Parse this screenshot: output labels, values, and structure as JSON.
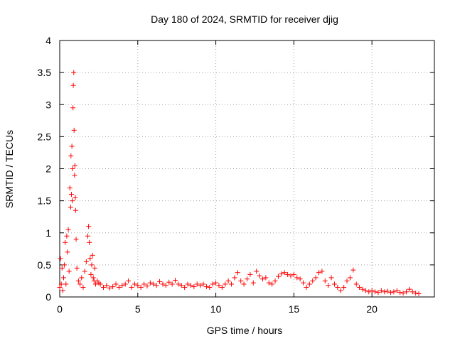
{
  "chart_data": {
    "type": "scatter",
    "title": "Day 180 of 2024, SRMTID for receiver djig",
    "xlabel": "GPS time / hours",
    "ylabel": "SRMTID / TECUs",
    "xlim": [
      0,
      24
    ],
    "ylim": [
      0,
      4
    ],
    "xticks": [
      0,
      5,
      10,
      15,
      20
    ],
    "yticks": [
      0,
      0.5,
      1,
      1.5,
      2,
      2.5,
      3,
      3.5,
      4
    ],
    "ytick_labels": [
      "0",
      "0.5",
      "1",
      "1.5",
      "2",
      "2.5",
      "3",
      "3.5",
      "4"
    ],
    "grid": true,
    "marker": "+",
    "color": "#ff0000",
    "series": [
      {
        "name": "SRMTID",
        "x": [
          0.0,
          0.05,
          0.1,
          0.15,
          0.2,
          0.25,
          0.3,
          0.35,
          0.4,
          0.45,
          0.5,
          0.55,
          0.6,
          0.65,
          0.7,
          0.72,
          0.75,
          0.78,
          0.8,
          0.82,
          0.85,
          0.87,
          0.9,
          0.92,
          0.95,
          0.97,
          1.0,
          1.02,
          1.05,
          1.1,
          1.2,
          1.3,
          1.4,
          1.5,
          1.6,
          1.7,
          1.8,
          1.85,
          1.9,
          1.95,
          2.0,
          2.05,
          2.1,
          2.15,
          2.2,
          2.25,
          2.3,
          2.4,
          2.5,
          2.6,
          2.8,
          3.0,
          3.2,
          3.4,
          3.6,
          3.8,
          4.0,
          4.2,
          4.4,
          4.6,
          4.8,
          5.0,
          5.2,
          5.4,
          5.6,
          5.8,
          6.0,
          6.2,
          6.4,
          6.6,
          6.8,
          7.0,
          7.2,
          7.4,
          7.6,
          7.8,
          8.0,
          8.2,
          8.4,
          8.6,
          8.8,
          9.0,
          9.2,
          9.4,
          9.6,
          9.8,
          10.0,
          10.2,
          10.4,
          10.6,
          10.8,
          11.0,
          11.2,
          11.4,
          11.6,
          11.8,
          12.0,
          12.2,
          12.4,
          12.6,
          12.8,
          13.0,
          13.2,
          13.4,
          13.6,
          13.8,
          14.0,
          14.2,
          14.4,
          14.6,
          14.8,
          15.0,
          15.2,
          15.4,
          15.6,
          15.8,
          16.0,
          16.2,
          16.4,
          16.6,
          16.8,
          17.0,
          17.2,
          17.4,
          17.6,
          17.8,
          18.0,
          18.2,
          18.4,
          18.6,
          18.8,
          19.0,
          19.2,
          19.4,
          19.6,
          19.8,
          20.0,
          20.2,
          20.4,
          20.6,
          20.8,
          21.0,
          21.2,
          21.4,
          21.6,
          21.8,
          22.0,
          22.2,
          22.4,
          22.6,
          22.8,
          23.0
        ],
        "y": [
          0.15,
          0.6,
          0.2,
          0.45,
          0.1,
          0.3,
          0.5,
          0.85,
          0.2,
          0.95,
          0.7,
          1.05,
          0.4,
          1.7,
          1.4,
          2.2,
          1.6,
          2.35,
          1.5,
          2.0,
          2.95,
          3.3,
          3.5,
          2.6,
          1.9,
          2.05,
          1.55,
          1.35,
          0.9,
          0.45,
          0.25,
          0.2,
          0.3,
          0.15,
          0.4,
          0.55,
          0.95,
          1.1,
          0.85,
          0.6,
          0.35,
          0.5,
          0.65,
          0.3,
          0.25,
          0.45,
          0.2,
          0.25,
          0.22,
          0.2,
          0.15,
          0.18,
          0.14,
          0.16,
          0.2,
          0.15,
          0.18,
          0.2,
          0.25,
          0.15,
          0.2,
          0.18,
          0.15,
          0.2,
          0.17,
          0.22,
          0.2,
          0.18,
          0.24,
          0.2,
          0.18,
          0.23,
          0.2,
          0.26,
          0.2,
          0.18,
          0.15,
          0.2,
          0.18,
          0.16,
          0.2,
          0.18,
          0.2,
          0.16,
          0.15,
          0.2,
          0.22,
          0.18,
          0.15,
          0.2,
          0.25,
          0.2,
          0.3,
          0.38,
          0.25,
          0.2,
          0.28,
          0.35,
          0.22,
          0.4,
          0.33,
          0.28,
          0.3,
          0.22,
          0.2,
          0.25,
          0.32,
          0.36,
          0.38,
          0.35,
          0.33,
          0.35,
          0.3,
          0.28,
          0.22,
          0.15,
          0.2,
          0.25,
          0.3,
          0.38,
          0.4,
          0.25,
          0.18,
          0.3,
          0.2,
          0.15,
          0.1,
          0.15,
          0.25,
          0.3,
          0.42,
          0.2,
          0.15,
          0.12,
          0.1,
          0.08,
          0.1,
          0.08,
          0.07,
          0.1,
          0.08,
          0.09,
          0.07,
          0.08,
          0.1,
          0.07,
          0.06,
          0.08,
          0.12,
          0.08,
          0.06,
          0.05
        ]
      }
    ]
  }
}
